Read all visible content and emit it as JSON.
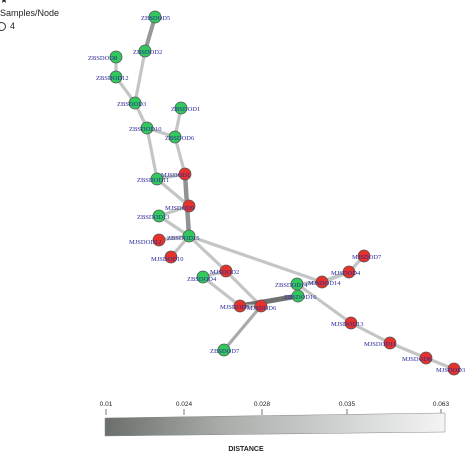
{
  "legend": {
    "star_symbol": "★",
    "title": "Samples/Node",
    "size_value": "4"
  },
  "colors": {
    "zb_node": "#31c95c",
    "mj_node": "#e5332c",
    "node_stroke": "#555555",
    "label": "#2a2a9a"
  },
  "nodes": [
    {
      "id": "ZBSDD5",
      "label": "ZBSDOD5",
      "group": "zb"
    },
    {
      "id": "ZBSDD2",
      "label": "ZBSDOD2",
      "group": "zb"
    },
    {
      "id": "ZBSDD8",
      "label": "ZBSDOD8",
      "group": "zb"
    },
    {
      "id": "ZBSDD12",
      "label": "ZBSDOD12",
      "group": "zb"
    },
    {
      "id": "ZBSDD3",
      "label": "ZBSDOD3",
      "group": "zb"
    },
    {
      "id": "ZBSDD1",
      "label": "ZBSDOD1",
      "group": "zb"
    },
    {
      "id": "ZBSDD10",
      "label": "ZBSDOD10",
      "group": "zb"
    },
    {
      "id": "ZBSDD6",
      "label": "ZBSDOD6",
      "group": "zb"
    },
    {
      "id": "ZBSDD11",
      "label": "ZBSDOD11",
      "group": "zb"
    },
    {
      "id": "MJSDD1",
      "label": "MJSDOD1",
      "group": "mj"
    },
    {
      "id": "MJSDD9",
      "label": "MJSDOD9",
      "group": "mj"
    },
    {
      "id": "ZBSDD13",
      "label": "ZBSDOD13",
      "group": "zb"
    },
    {
      "id": "MJSDD12",
      "label": "MJSDOD12",
      "group": "mj"
    },
    {
      "id": "ZBSDD15",
      "label": "ZBSDOD15",
      "group": "zb"
    },
    {
      "id": "MJSDD10",
      "label": "MJSDOD10",
      "group": "mj"
    },
    {
      "id": "ZBSDD4",
      "label": "ZBSDOD4",
      "group": "zb"
    },
    {
      "id": "MJSDD2",
      "label": "MJSDOD2",
      "group": "mj"
    },
    {
      "id": "MJSDD7",
      "label": "MJSDOD7",
      "group": "mj"
    },
    {
      "id": "ZBSDD14",
      "label": "ZBSDOD14",
      "group": "zb"
    },
    {
      "id": "MJSDD14",
      "label": "MJSDOD14",
      "group": "mj"
    },
    {
      "id": "MJSDD4",
      "label": "MJSDOD4",
      "group": "mj"
    },
    {
      "id": "ZBSDD16",
      "label": "ZBSDOD16",
      "group": "zb"
    },
    {
      "id": "MJSDD5",
      "label": "MJSDOD5",
      "group": "mj"
    },
    {
      "id": "MJSDD6",
      "label": "MJSDOD6",
      "group": "mj"
    },
    {
      "id": "MJSDD13",
      "label": "MJSDOD13",
      "group": "mj"
    },
    {
      "id": "ZBSDD7",
      "label": "ZBSDOD7",
      "group": "zb"
    },
    {
      "id": "MJSDD11",
      "label": "MJSDOD11",
      "group": "mj"
    },
    {
      "id": "MJSDD8",
      "label": "MJSDOD8",
      "group": "mj"
    },
    {
      "id": "MJSDD3",
      "label": "MJSDOD3",
      "group": "mj"
    }
  ],
  "edges": [
    {
      "from": "ZBSDD5",
      "to": "ZBSDD2"
    },
    {
      "from": "ZBSDD2",
      "to": "ZBSDD3"
    },
    {
      "from": "ZBSDD8",
      "to": "ZBSDD12"
    },
    {
      "from": "ZBSDD12",
      "to": "ZBSDD3"
    },
    {
      "from": "ZBSDD3",
      "to": "ZBSDD10"
    },
    {
      "from": "ZBSDD1",
      "to": "ZBSDD6"
    },
    {
      "from": "ZBSDD10",
      "to": "ZBSDD6"
    },
    {
      "from": "ZBSDD10",
      "to": "ZBSDD11"
    },
    {
      "from": "ZBSDD6",
      "to": "MJSDD1"
    },
    {
      "from": "ZBSDD11",
      "to": "MJSDD1"
    },
    {
      "from": "ZBSDD11",
      "to": "MJSDD9"
    },
    {
      "from": "MJSDD1",
      "to": "ZBSDD15"
    },
    {
      "from": "MJSDD9",
      "to": "ZBSDD13"
    },
    {
      "from": "ZBSDD13",
      "to": "ZBSDD15"
    },
    {
      "from": "MJSDD12",
      "to": "ZBSDD15"
    },
    {
      "from": "ZBSDD15",
      "to": "MJSDD10"
    },
    {
      "from": "ZBSDD15",
      "to": "MJSDD2"
    },
    {
      "from": "ZBSDD15",
      "to": "MJSDD14"
    },
    {
      "from": "ZBSDD4",
      "to": "MJSDD2"
    },
    {
      "from": "ZBSDD4",
      "to": "MJSDD5"
    },
    {
      "from": "MJSDD2",
      "to": "MJSDD6"
    },
    {
      "from": "MJSDD5",
      "to": "ZBSDD16"
    },
    {
      "from": "MJSDD5",
      "to": "MJSDD6"
    },
    {
      "from": "MJSDD6",
      "to": "ZBSDD7"
    },
    {
      "from": "ZBSDD14",
      "to": "MJSDD14"
    },
    {
      "from": "MJSDD14",
      "to": "MJSDD4"
    },
    {
      "from": "MJSDD4",
      "to": "MJSDD7"
    },
    {
      "from": "ZBSDD14",
      "to": "MJSDD13"
    },
    {
      "from": "MJSDD13",
      "to": "MJSDD11"
    },
    {
      "from": "MJSDD11",
      "to": "MJSDD8"
    },
    {
      "from": "MJSDD8",
      "to": "MJSDD3"
    }
  ],
  "distance_scale": {
    "ticks": [
      "0.01",
      "0.024",
      "0.028",
      "0.035",
      "0.063"
    ],
    "label": "DISTANCE"
  }
}
